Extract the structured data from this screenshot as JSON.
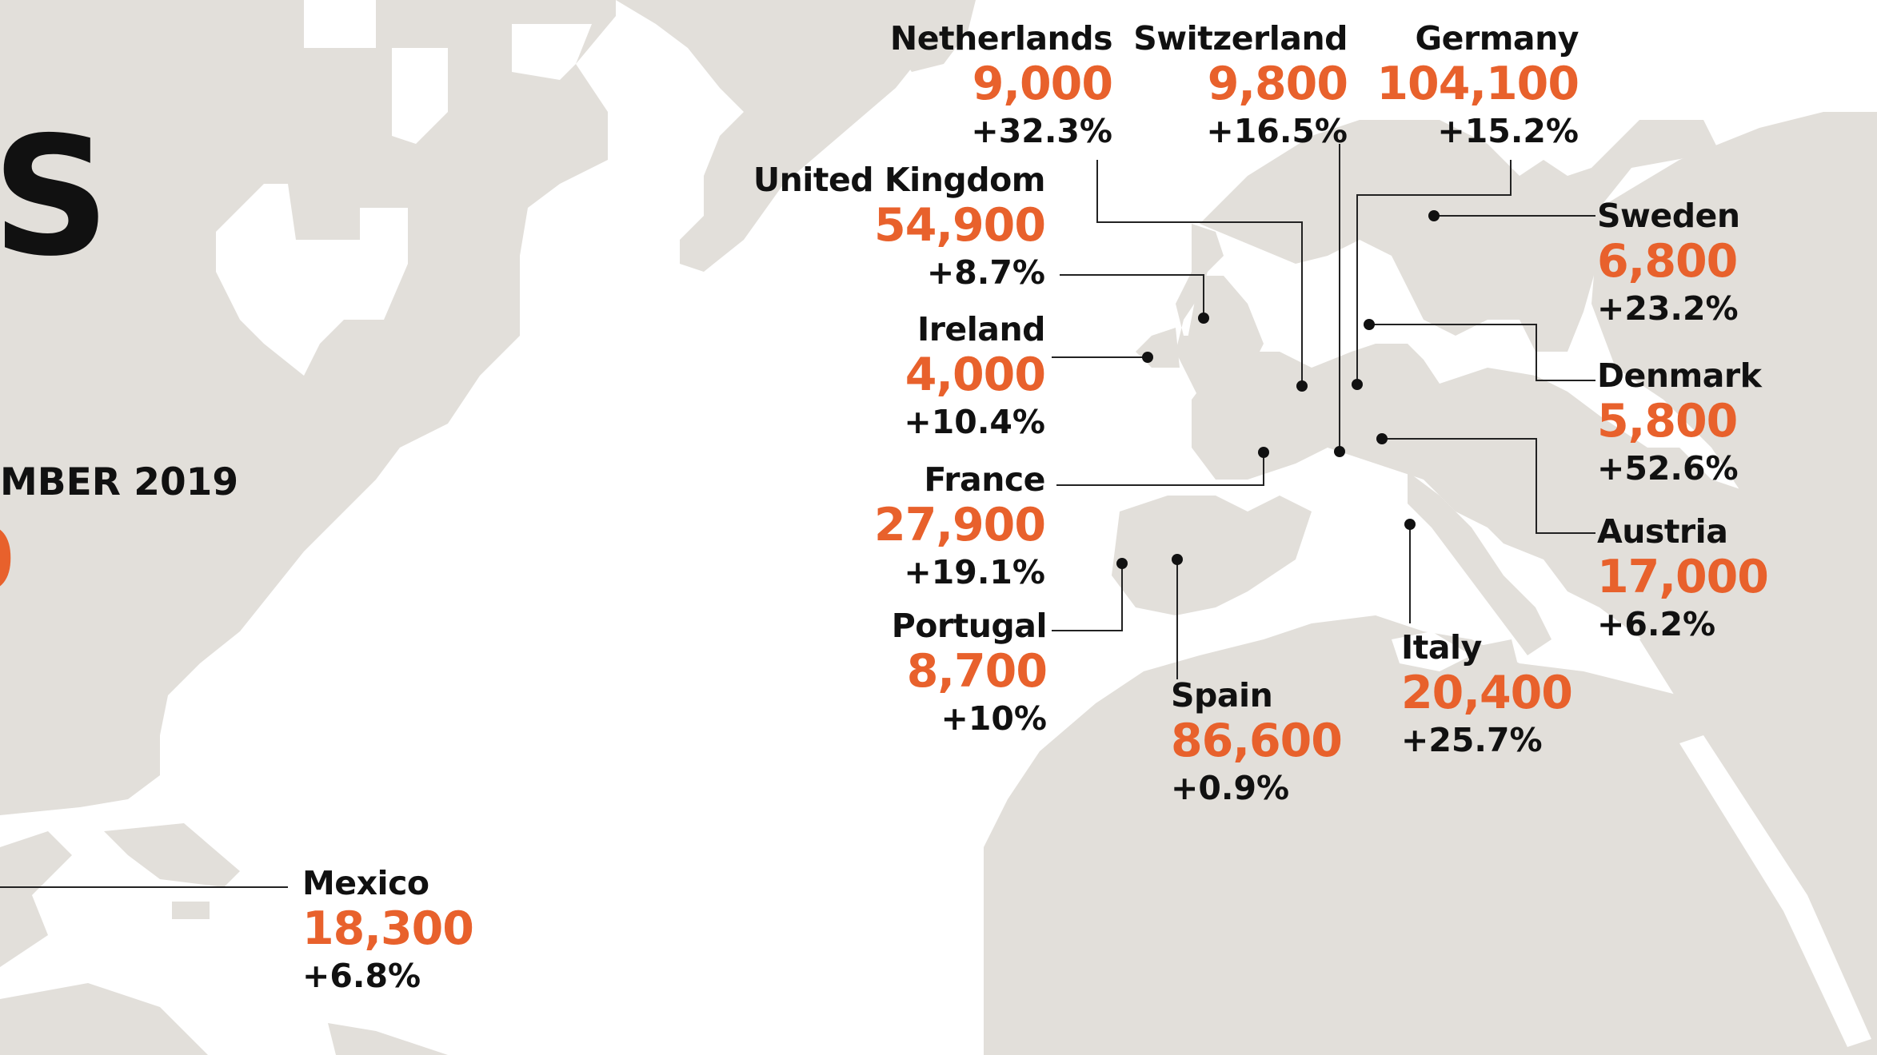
{
  "page": {
    "title_fragment": "S",
    "date_fragment": "MBER 2019",
    "total_fragment": "0"
  },
  "colors": {
    "land": "#e2dfda",
    "accent": "#e8612c",
    "text": "#111111",
    "background": "#ffffff"
  },
  "countries": [
    {
      "name": "Netherlands",
      "value": "9,000",
      "change": "+32.3%"
    },
    {
      "name": "Switzerland",
      "value": "9,800",
      "change": "+16.5%"
    },
    {
      "name": "Germany",
      "value": "104,100",
      "change": "+15.2%"
    },
    {
      "name": "United Kingdom",
      "value": "54,900",
      "change": "+8.7%"
    },
    {
      "name": "Ireland",
      "value": "4,000",
      "change": "+10.4%"
    },
    {
      "name": "France",
      "value": "27,900",
      "change": "+19.1%"
    },
    {
      "name": "Portugal",
      "value": "8,700",
      "change": "+10%"
    },
    {
      "name": "Spain",
      "value": "86,600",
      "change": "+0.9%"
    },
    {
      "name": "Italy",
      "value": "20,400",
      "change": "+25.7%"
    },
    {
      "name": "Sweden",
      "value": "6,800",
      "change": "+23.2%"
    },
    {
      "name": "Denmark",
      "value": "5,800",
      "change": "+52.6%"
    },
    {
      "name": "Austria",
      "value": "17,000",
      "change": "+6.2%"
    },
    {
      "name": "Mexico",
      "value": "18,300",
      "change": "+6.8%"
    }
  ]
}
